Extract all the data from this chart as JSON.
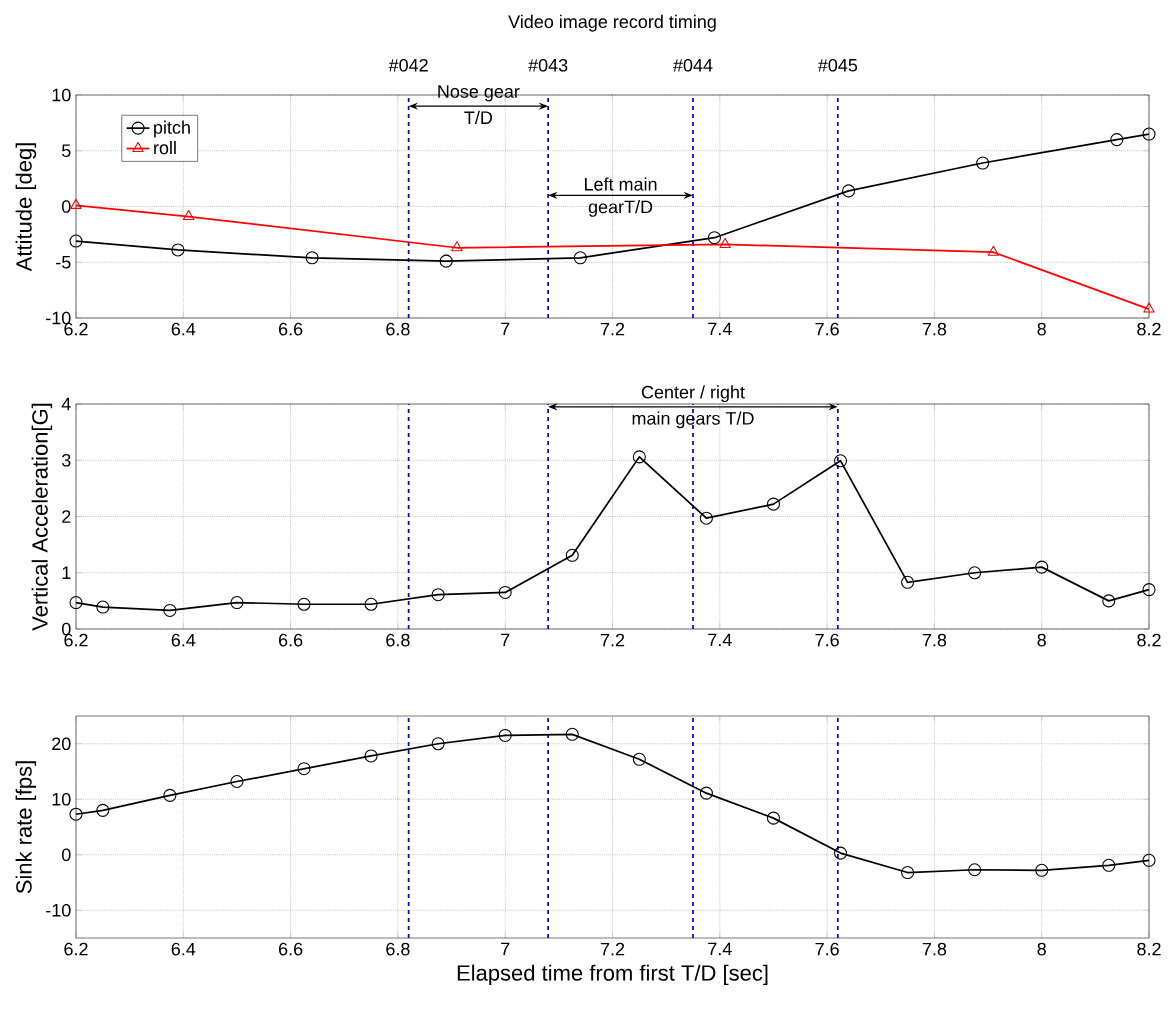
{
  "chart_data": [
    {
      "type": "line",
      "title": "Video image record timing",
      "ylabel": "Attitude [deg]",
      "xlim": [
        6.2,
        8.2
      ],
      "xticks": [
        6.2,
        6.4,
        6.6,
        6.8,
        7,
        7.2,
        7.4,
        7.6,
        7.8,
        8,
        8.2
      ],
      "ylim": [
        -10,
        10
      ],
      "yticks": [
        -10,
        -5,
        0,
        5,
        10
      ],
      "grid": true,
      "legend": "top left",
      "series": [
        {
          "name": "pitch",
          "color": "#000000",
          "marker": "circle",
          "x": [
            6.2,
            6.39,
            6.64,
            6.89,
            7.14,
            7.39,
            7.64,
            7.89,
            8.14,
            8.2
          ],
          "values": [
            -3.1,
            -3.9,
            -4.6,
            -4.9,
            -4.6,
            -2.8,
            1.4,
            3.9,
            6.0,
            6.5
          ]
        },
        {
          "name": "roll",
          "color": "#ff0000",
          "marker": "triangle",
          "x": [
            6.2,
            6.41,
            6.91,
            7.41,
            7.91,
            8.2
          ],
          "values": [
            0.1,
            -0.9,
            -3.7,
            -3.4,
            -4.1,
            -9.2
          ]
        }
      ],
      "ref_lines": [
        {
          "axis": "x",
          "value": 6.82,
          "color": "#0000ff",
          "line_style": "dashed"
        },
        {
          "axis": "x",
          "value": 7.08,
          "color": "#0000ff",
          "line_style": "dashed"
        },
        {
          "axis": "x",
          "value": 7.35,
          "color": "#0000ff",
          "line_style": "dashed"
        },
        {
          "axis": "x",
          "value": 7.62,
          "color": "#0000ff",
          "line_style": "dashed"
        }
      ],
      "annotations": [
        "#042",
        "#043",
        "#044",
        "#045",
        {
          "text": "Nose gear",
          "x": 6.82,
          "y": 9.0
        },
        "T/D",
        {
          "text": "Left main",
          "x": 7.08,
          "y": 1.0
        },
        "gearT/D"
      ]
    },
    {
      "type": "line",
      "ylabel": "Vertical Acceleration[G]",
      "xlim": [
        6.2,
        8.2
      ],
      "xticks": [
        6.2,
        6.4,
        6.6,
        6.8,
        7,
        7.2,
        7.4,
        7.6,
        7.8,
        8,
        8.2
      ],
      "ylim": [
        0,
        4
      ],
      "yticks": [
        0,
        1,
        2,
        3,
        4
      ],
      "grid": true,
      "series": [
        {
          "color": "#000000",
          "marker": "circle",
          "x": [
            6.2,
            6.25,
            6.375,
            6.5,
            6.625,
            6.75,
            6.875,
            7,
            7.125,
            7.25,
            7.375,
            7.5,
            7.625,
            7.75,
            7.875,
            8,
            8.125,
            8.2
          ],
          "values": [
            0.47,
            0.39,
            0.33,
            0.47,
            0.44,
            0.44,
            0.61,
            0.65,
            1.31,
            3.06,
            1.97,
            2.22,
            2.99,
            0.83,
            1.0,
            1.1,
            0.5,
            0.7
          ]
        }
      ],
      "ref_lines": [
        {
          "axis": "x",
          "value": 6.82,
          "color": "#0000ff",
          "line_style": "dashed"
        },
        {
          "axis": "x",
          "value": 7.08,
          "color": "#0000ff",
          "line_style": "dashed"
        },
        {
          "axis": "x",
          "value": 7.35,
          "color": "#0000ff",
          "line_style": "dashed"
        },
        {
          "axis": "x",
          "value": 7.62,
          "color": "#0000ff",
          "line_style": "dashed"
        }
      ],
      "annotations": [
        {
          "text": "Center / right",
          "x": 7.35,
          "y": 3.95
        },
        "main gears T/D"
      ]
    },
    {
      "type": "line",
      "xlabel": "Elapsed time from  first  T/D [sec]",
      "ylabel": "Sink rate [fps]",
      "xlim": [
        6.2,
        8.2
      ],
      "xticks": [
        6.2,
        6.4,
        6.6,
        6.8,
        7,
        7.2,
        7.4,
        7.6,
        7.8,
        8,
        8.2
      ],
      "ylim": [
        -15,
        25
      ],
      "yticks": [
        -10,
        0,
        10,
        20
      ],
      "grid": true,
      "series": [
        {
          "color": "#000000",
          "marker": "circle",
          "x": [
            6.2,
            6.25,
            6.375,
            6.5,
            6.625,
            6.75,
            6.875,
            7,
            7.125,
            7.25,
            7.375,
            7.5,
            7.625,
            7.75,
            7.875,
            8,
            8.125,
            8.2
          ],
          "values": [
            7.3,
            8.0,
            10.7,
            13.2,
            15.5,
            17.8,
            20.0,
            21.5,
            21.7,
            17.2,
            11.1,
            6.6,
            0.3,
            -3.2,
            -2.7,
            -2.8,
            -1.9,
            -1.0
          ]
        }
      ],
      "ref_lines": [
        {
          "axis": "x",
          "value": 6.82,
          "color": "#0000ff",
          "line_style": "dashed"
        },
        {
          "axis": "x",
          "value": 7.08,
          "color": "#0000ff",
          "line_style": "dashed"
        },
        {
          "axis": "x",
          "value": 7.35,
          "color": "#0000ff",
          "line_style": "dashed"
        },
        {
          "axis": "x",
          "value": 7.62,
          "color": "#0000ff",
          "line_style": "dashed"
        }
      ]
    }
  ]
}
